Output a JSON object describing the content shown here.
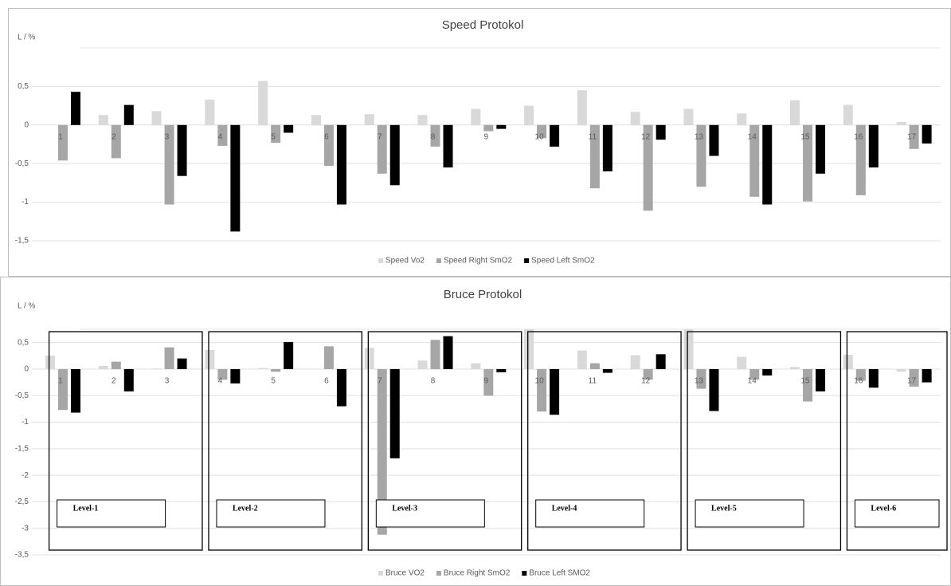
{
  "chart_data": [
    {
      "type": "bar",
      "title": "Speed Protokol",
      "y_label": "L / %",
      "categories": [
        "1",
        "2",
        "3",
        "4",
        "5",
        "6",
        "7",
        "8",
        "9",
        "10",
        "11",
        "12",
        "13",
        "14",
        "15",
        "16",
        "17"
      ],
      "series": [
        {
          "name": "Speed Vo2",
          "color": "#d9d9d9",
          "values": [
            0,
            0.13,
            0.18,
            0.33,
            0.57,
            0.13,
            0.14,
            0.13,
            0.21,
            0.25,
            0.45,
            0.17,
            0.21,
            0.15,
            0.32,
            0.26,
            0.04
          ]
        },
        {
          "name": "Speed Right SmO2",
          "color": "#a6a6a6",
          "values": [
            -0.46,
            -0.43,
            -1.03,
            -0.27,
            -0.23,
            -0.53,
            -0.63,
            -0.28,
            -0.08,
            -0.17,
            -0.82,
            -1.11,
            -0.8,
            -0.93,
            -0.99,
            -0.91,
            -0.31
          ]
        },
        {
          "name": "Speed Left SmO2",
          "color": "#000000",
          "values": [
            0.43,
            0.26,
            -0.66,
            -1.38,
            -0.1,
            -1.03,
            -0.78,
            -0.55,
            -0.05,
            -0.28,
            -0.6,
            -0.19,
            -0.4,
            -1.03,
            -0.63,
            -0.55,
            -0.24
          ]
        }
      ],
      "ylim": [
        -1.5,
        1
      ],
      "yticks": [
        {
          "value": 0.5,
          "label": "0,5"
        },
        0,
        {
          "value": -0.5,
          "label": "-0,5"
        },
        -1,
        {
          "value": -1.5,
          "label": "-1,5"
        }
      ],
      "grid": true,
      "legend": "bottom"
    },
    {
      "type": "bar",
      "title": "Bruce Protokol",
      "y_label": "L / %",
      "categories": [
        "1",
        "2",
        "3",
        "4",
        "5",
        "6",
        "7",
        "8",
        "9",
        "10",
        "11",
        "12",
        "13",
        "14",
        "15",
        "16",
        "17"
      ],
      "series": [
        {
          "name": "Bruce VO2",
          "color": "#d9d9d9",
          "values": [
            0.25,
            0.06,
            0.01,
            0.36,
            0.02,
            0,
            0.4,
            0.16,
            0.11,
            0.75,
            0.35,
            0.26,
            0.75,
            0.23,
            0.04,
            0.27,
            -0.05
          ]
        },
        {
          "name": "Bruce Right SmO2",
          "color": "#a6a6a6",
          "values": [
            -0.77,
            0.14,
            0.41,
            -0.2,
            -0.05,
            0.43,
            -3.12,
            0.55,
            -0.5,
            -0.8,
            0.11,
            -0.2,
            -0.37,
            -0.2,
            -0.61,
            -0.22,
            -0.33
          ]
        },
        {
          "name": "Bruce Left SMO2",
          "color": "#000000",
          "values": [
            -0.82,
            -0.42,
            0.2,
            -0.27,
            0.51,
            -0.7,
            -1.68,
            0.62,
            -0.06,
            -0.86,
            -0.07,
            0.28,
            -0.79,
            -0.12,
            -0.42,
            -0.35,
            -0.25
          ]
        }
      ],
      "ylim": [
        -3.5,
        0.75
      ],
      "yticks": [
        {
          "value": 0.5,
          "label": "0,5"
        },
        0,
        {
          "value": -0.5,
          "label": "-0,5"
        },
        -1,
        {
          "value": -1.5,
          "label": "-1,5"
        },
        -2,
        {
          "value": -2.5,
          "label": "-2,5"
        },
        -3,
        {
          "value": -3.5,
          "label": "-3,5"
        }
      ],
      "grid": true,
      "legend": "bottom",
      "levels": [
        "Level-1",
        "Level-2",
        "Level-3",
        "Level-4",
        "Level-5",
        "Level-6"
      ]
    }
  ]
}
